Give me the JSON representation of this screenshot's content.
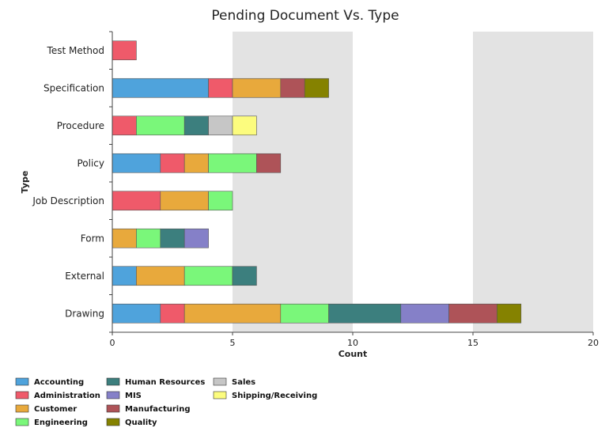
{
  "chart_data": {
    "type": "bar",
    "orientation": "horizontal",
    "stacked": true,
    "title": "Pending Document Vs. Type",
    "xlabel": "Count",
    "ylabel": "Type",
    "xlim": [
      0,
      20
    ],
    "xticks": [
      0,
      5,
      10,
      15,
      20
    ],
    "categories": [
      "Test Method",
      "Specification",
      "Procedure",
      "Policy",
      "Job Description",
      "Form",
      "External",
      "Drawing"
    ],
    "series": [
      {
        "name": "Accounting",
        "color": "#4fa3dc",
        "values": [
          0,
          4,
          0,
          2,
          0,
          0,
          1,
          2
        ]
      },
      {
        "name": "Administration",
        "color": "#ef5a6a",
        "values": [
          1,
          1,
          1,
          1,
          2,
          0,
          0,
          1
        ]
      },
      {
        "name": "Customer",
        "color": "#e8a93c",
        "values": [
          0,
          2,
          0,
          1,
          2,
          1,
          2,
          4
        ]
      },
      {
        "name": "Engineering",
        "color": "#7af77a",
        "values": [
          0,
          0,
          2,
          2,
          1,
          1,
          2,
          2
        ]
      },
      {
        "name": "Human Resources",
        "color": "#3c7f7e",
        "values": [
          0,
          0,
          1,
          0,
          0,
          1,
          1,
          3
        ]
      },
      {
        "name": "MIS",
        "color": "#8580c8",
        "values": [
          0,
          0,
          0,
          0,
          0,
          1,
          0,
          2
        ]
      },
      {
        "name": "Manufacturing",
        "color": "#ae5358",
        "values": [
          0,
          1,
          0,
          1,
          0,
          0,
          0,
          2
        ]
      },
      {
        "name": "Quality",
        "color": "#858200",
        "values": [
          0,
          1,
          0,
          0,
          0,
          0,
          0,
          1
        ]
      },
      {
        "name": "Sales",
        "color": "#c6c6c6",
        "values": [
          0,
          0,
          1,
          0,
          0,
          0,
          0,
          0
        ]
      },
      {
        "name": "Shipping/Receiving",
        "color": "#fcfc7e",
        "values": [
          0,
          0,
          1,
          0,
          0,
          0,
          0,
          0
        ]
      }
    ],
    "legend": {
      "position": "bottom-left",
      "columns": [
        [
          "Accounting",
          "Administration",
          "Customer",
          "Engineering"
        ],
        [
          "Human Resources",
          "MIS",
          "Manufacturing",
          "Quality"
        ],
        [
          "Sales",
          "Shipping/Receiving"
        ]
      ]
    },
    "background_bands": true,
    "band_color": "#e3e3e3"
  }
}
